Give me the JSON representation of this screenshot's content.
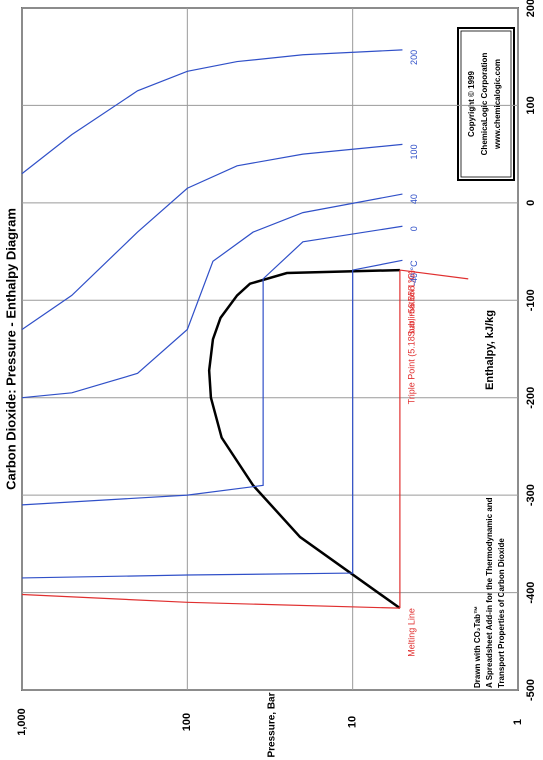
{
  "chart_data": {
    "type": "line",
    "title": "Carbon Dioxide: Pressure - Enthalpy Diagram",
    "x_label": "Enthalpy, kJ/kg",
    "y_label": "Pressure, Bar",
    "xlim": [
      -500,
      200
    ],
    "xticks": [
      -500,
      -400,
      -300,
      -200,
      -100,
      0,
      100,
      200
    ],
    "ylim": [
      1,
      1000
    ],
    "yticks": [
      1,
      10,
      100,
      {
        "value": 1000,
        "label": "1,000"
      }
    ],
    "log_y": true,
    "grid": true,
    "grid_color": "#9a9a9a",
    "series": [
      {
        "color": "#000000",
        "x": [
          -416,
          -343,
          -290,
          -241,
          -200,
          -172,
          -140,
          -118,
          -95,
          -83,
          -72,
          -69
        ],
        "values": [
          5.18,
          20.8,
          40,
          62,
          72,
          73.8,
          70,
          63,
          50,
          41.8,
          25,
          5.18
        ]
      },
      {
        "name": "Triple Point (5.18 bar, -56.558 °C)",
        "color": "#e03030",
        "x": [
          -69,
          -416
        ],
        "values": [
          5.18,
          5.18
        ]
      },
      {
        "name": "Melting Line",
        "color": "#e03030",
        "x": [
          -416,
          -410,
          -402
        ],
        "values": [
          5.18,
          100,
          1000
        ]
      },
      {
        "name": "Sublimation Line",
        "color": "#e03030",
        "x": [
          -69,
          -78
        ],
        "values": [
          5.18,
          2.0
        ]
      },
      {
        "name": "200",
        "color": "#3050c8",
        "x": [
          157,
          152,
          145,
          135,
          115,
          70,
          30
        ],
        "values": [
          5,
          20,
          50,
          100,
          200,
          500,
          1000
        ]
      },
      {
        "name": "100",
        "color": "#3050c8",
        "x": [
          60,
          50,
          38,
          15,
          -30,
          -95,
          -130
        ],
        "values": [
          5,
          20,
          50,
          100,
          200,
          500,
          1000
        ]
      },
      {
        "name": "40",
        "color": "#3050c8",
        "x": [
          9,
          -10,
          -30,
          -60,
          -130,
          -175,
          -195,
          -200
        ],
        "values": [
          5,
          20,
          40,
          70,
          100,
          200,
          500,
          1000
        ]
      },
      {
        "name": "0",
        "color": "#3050c8",
        "x": [
          -24,
          -40,
          -78,
          -290,
          -300,
          -310
        ],
        "values": [
          5,
          20,
          34.8,
          34.8,
          100,
          1000
        ]
      },
      {
        "name": "-40 °C",
        "color": "#3050c8",
        "x": [
          -59,
          -69,
          -380,
          -382,
          -385
        ],
        "values": [
          5,
          10,
          10,
          100,
          1000
        ]
      }
    ],
    "copyright": [
      "Copyright © 1999",
      "ChemicaLogic Corporation",
      "www.chemicalogic.com"
    ],
    "credits": [
      "Drawn with CO₂Tab™",
      "A Spreadsheet Add-in for the Thermodynamic and",
      "Transport Properties of Carbon Dioxide"
    ]
  }
}
